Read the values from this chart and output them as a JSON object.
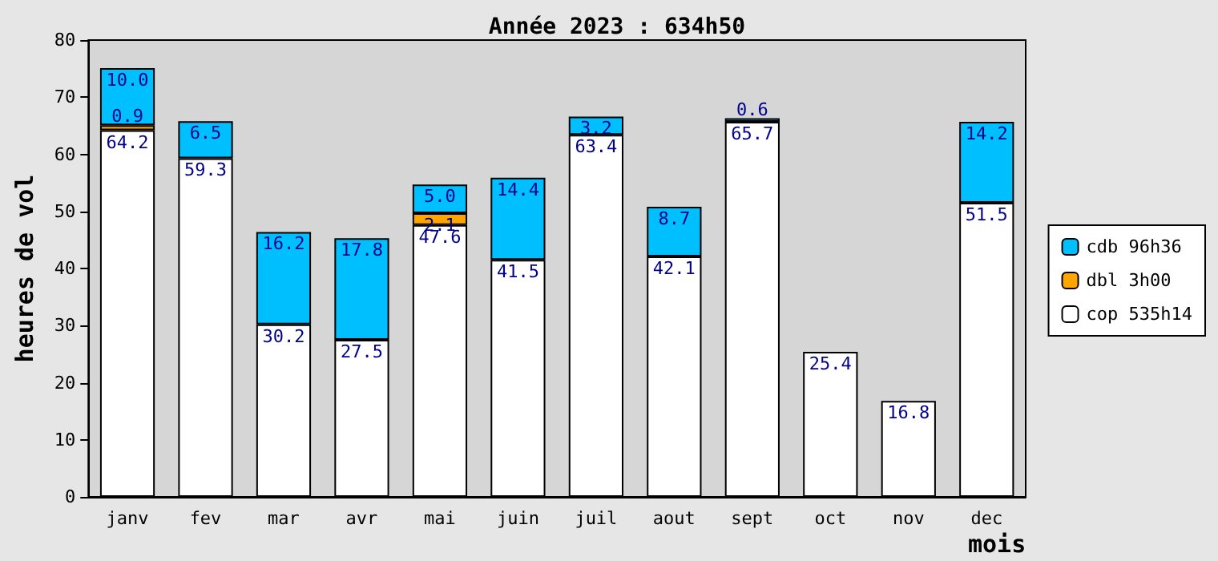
{
  "chart_data": {
    "type": "bar",
    "title": "Année 2023 : 634h50",
    "xlabel": "mois",
    "ylabel": "heures de vol",
    "categories": [
      "janv",
      "fev",
      "mar",
      "avr",
      "mai",
      "juin",
      "juil",
      "aout",
      "sept",
      "oct",
      "nov",
      "dec"
    ],
    "stacked": true,
    "legend": "right",
    "grid": false,
    "ylim": [
      0,
      80
    ],
    "yticks": [
      0,
      10,
      20,
      30,
      40,
      50,
      60,
      70,
      80
    ],
    "series": [
      {
        "name": "cop 535h14",
        "color": "#ffffff",
        "values": [
          64.2,
          59.3,
          30.2,
          27.5,
          47.6,
          41.5,
          63.4,
          42.1,
          65.7,
          25.4,
          16.8,
          51.5
        ],
        "value_labels": [
          "64.2",
          "59.3",
          "30.2",
          "27.5",
          "47.6",
          "41.5",
          "63.4",
          "42.1",
          "65.7",
          "25.4",
          "16.8",
          "51.5"
        ]
      },
      {
        "name": "dbl 3h00",
        "color": "#ffa500",
        "values": [
          0.9,
          null,
          null,
          null,
          2.1,
          null,
          null,
          null,
          null,
          null,
          null,
          null
        ],
        "value_labels": [
          "0.9",
          null,
          null,
          null,
          "2.1",
          null,
          null,
          null,
          null,
          null,
          null,
          null
        ]
      },
      {
        "name": "cdb 96h36",
        "color": "#00bfff",
        "values": [
          10.0,
          6.5,
          16.2,
          17.8,
          5.0,
          14.4,
          3.2,
          8.7,
          0.6,
          null,
          null,
          14.2
        ],
        "value_labels": [
          "10.0",
          "6.5",
          "16.2",
          "17.8",
          "5.0",
          "14.4",
          "3.2",
          "8.7",
          "0.6",
          null,
          null,
          "14.2"
        ]
      }
    ]
  }
}
